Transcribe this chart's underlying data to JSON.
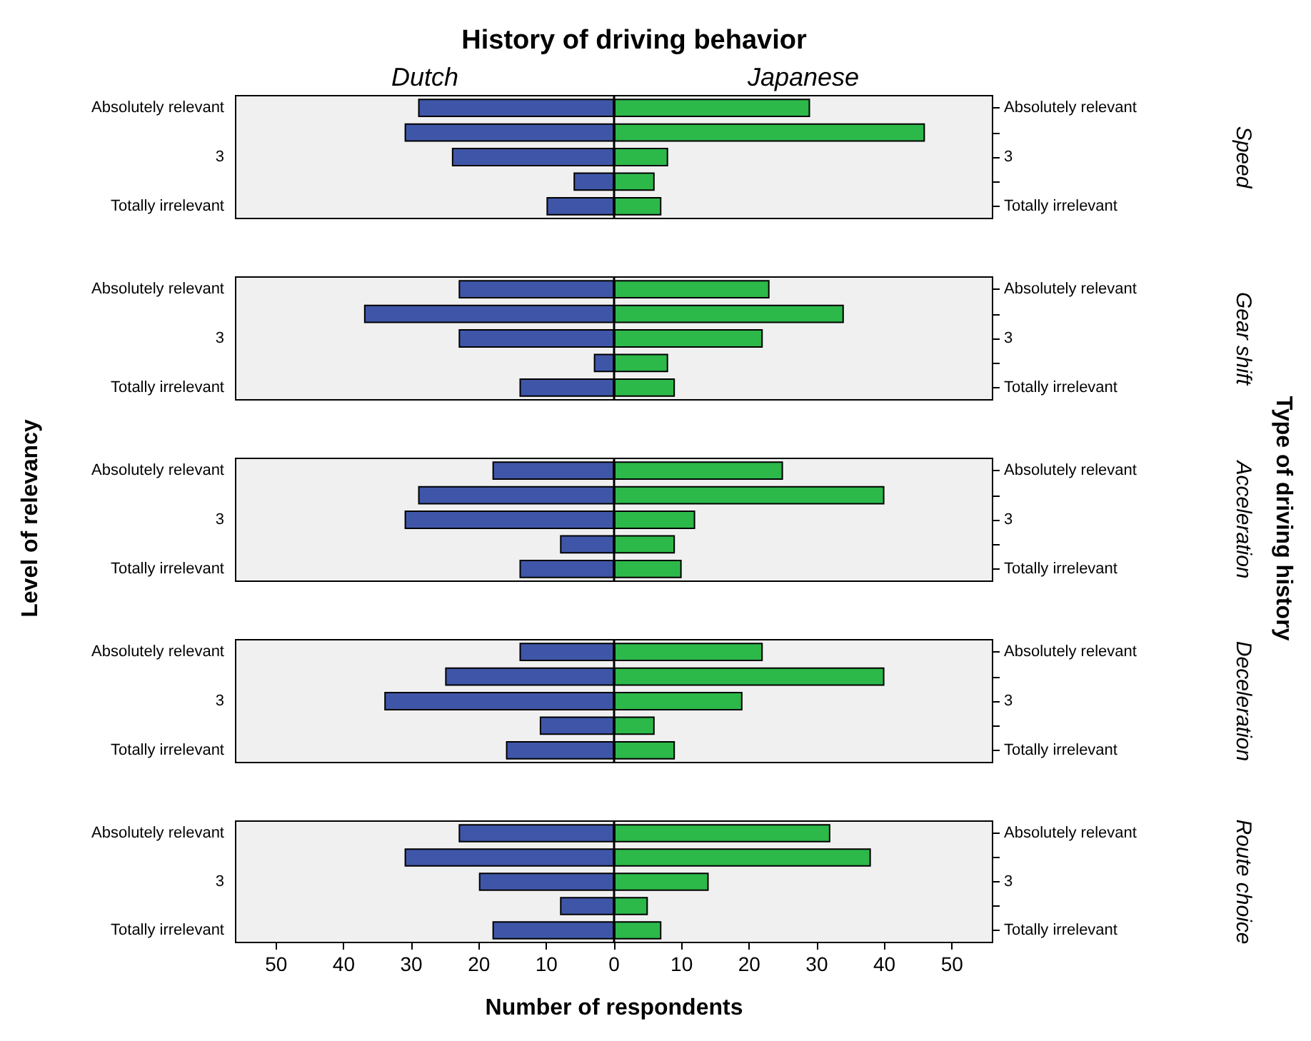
{
  "chart_data": [
    {
      "type": "bar",
      "orientation": "horizontal",
      "stacked": true,
      "title": "History of driving behavior",
      "y2label": "Speed",
      "categories": [
        "Absolutely relevant",
        null,
        "3",
        null,
        "Totally irrelevant"
      ],
      "series": [
        {
          "name": "Dutch",
          "color": "#3f56a8",
          "values": [
            -29,
            -31,
            -24,
            -6,
            -10
          ]
        },
        {
          "name": "Japanese",
          "color": "#2db84a",
          "values": [
            29,
            46,
            8,
            6,
            7
          ]
        }
      ],
      "xlim": [
        -56,
        56
      ],
      "ref_lines": [
        {
          "axis": "x",
          "value": 0
        }
      ],
      "tick_labels": "y",
      "grid": false,
      "legend": false
    },
    {
      "type": "bar",
      "orientation": "horizontal",
      "stacked": true,
      "y2label": "Gear shift",
      "categories": [
        "Absolutely relevant",
        null,
        "3",
        null,
        "Totally irrelevant"
      ],
      "series": [
        {
          "color": "#3f56a8",
          "values": [
            -23,
            -37,
            -23,
            -3,
            -14
          ]
        },
        {
          "color": "#2db84a",
          "values": [
            23,
            34,
            22,
            8,
            9
          ]
        }
      ],
      "xlim": [
        -56,
        56
      ],
      "ref_lines": [
        {
          "axis": "x",
          "value": 0
        }
      ],
      "tick_labels": "y",
      "grid": false,
      "legend": false
    },
    {
      "type": "bar",
      "orientation": "horizontal",
      "stacked": true,
      "y2label": "Acceleration",
      "ylabel": "Level of relevancy",
      "annotations": [
        "Type of driving history"
      ],
      "categories": [
        "Absolutely relevant",
        null,
        "3",
        null,
        "Totally irrelevant"
      ],
      "series": [
        {
          "color": "#3f56a8",
          "values": [
            -18,
            -29,
            -31,
            -8,
            -14
          ]
        },
        {
          "color": "#2db84a",
          "values": [
            25,
            40,
            12,
            9,
            10
          ]
        }
      ],
      "xlim": [
        -56,
        56
      ],
      "ref_lines": [
        {
          "axis": "x",
          "value": 0
        }
      ],
      "tick_labels": "y",
      "grid": false,
      "legend": false
    },
    {
      "type": "bar",
      "orientation": "horizontal",
      "stacked": true,
      "y2label": "Deceleration",
      "categories": [
        "Absolutely relevant",
        null,
        "3",
        null,
        "Totally irrelevant"
      ],
      "series": [
        {
          "color": "#3f56a8",
          "values": [
            -14,
            -25,
            -34,
            -11,
            -16
          ]
        },
        {
          "color": "#2db84a",
          "values": [
            22,
            40,
            19,
            6,
            9
          ]
        }
      ],
      "xlim": [
        -56,
        56
      ],
      "ref_lines": [
        {
          "axis": "x",
          "value": 0
        }
      ],
      "tick_labels": "y",
      "grid": false,
      "legend": false
    },
    {
      "type": "bar",
      "orientation": "horizontal",
      "stacked": true,
      "y2label": "Route choice",
      "xlabel": "Number of respondents",
      "categories": [
        "Absolutely relevant",
        null,
        "3",
        null,
        "Totally irrelevant"
      ],
      "series": [
        {
          "color": "#3f56a8",
          "values": [
            -23,
            -31,
            -20,
            -8,
            -18
          ]
        },
        {
          "color": "#2db84a",
          "values": [
            32,
            38,
            14,
            5,
            7
          ]
        }
      ],
      "xlim": [
        -56,
        56
      ],
      "xticks": [
        {
          "value": -50,
          "label": "50"
        },
        {
          "value": -40,
          "label": "40"
        },
        {
          "value": -30,
          "label": "30"
        },
        {
          "value": -20,
          "label": "20"
        },
        {
          "value": -10,
          "label": "10"
        },
        0,
        10,
        20,
        30,
        40,
        50
      ],
      "ref_lines": [
        {
          "axis": "x",
          "value": 0
        }
      ],
      "grid": false,
      "legend": false
    }
  ]
}
